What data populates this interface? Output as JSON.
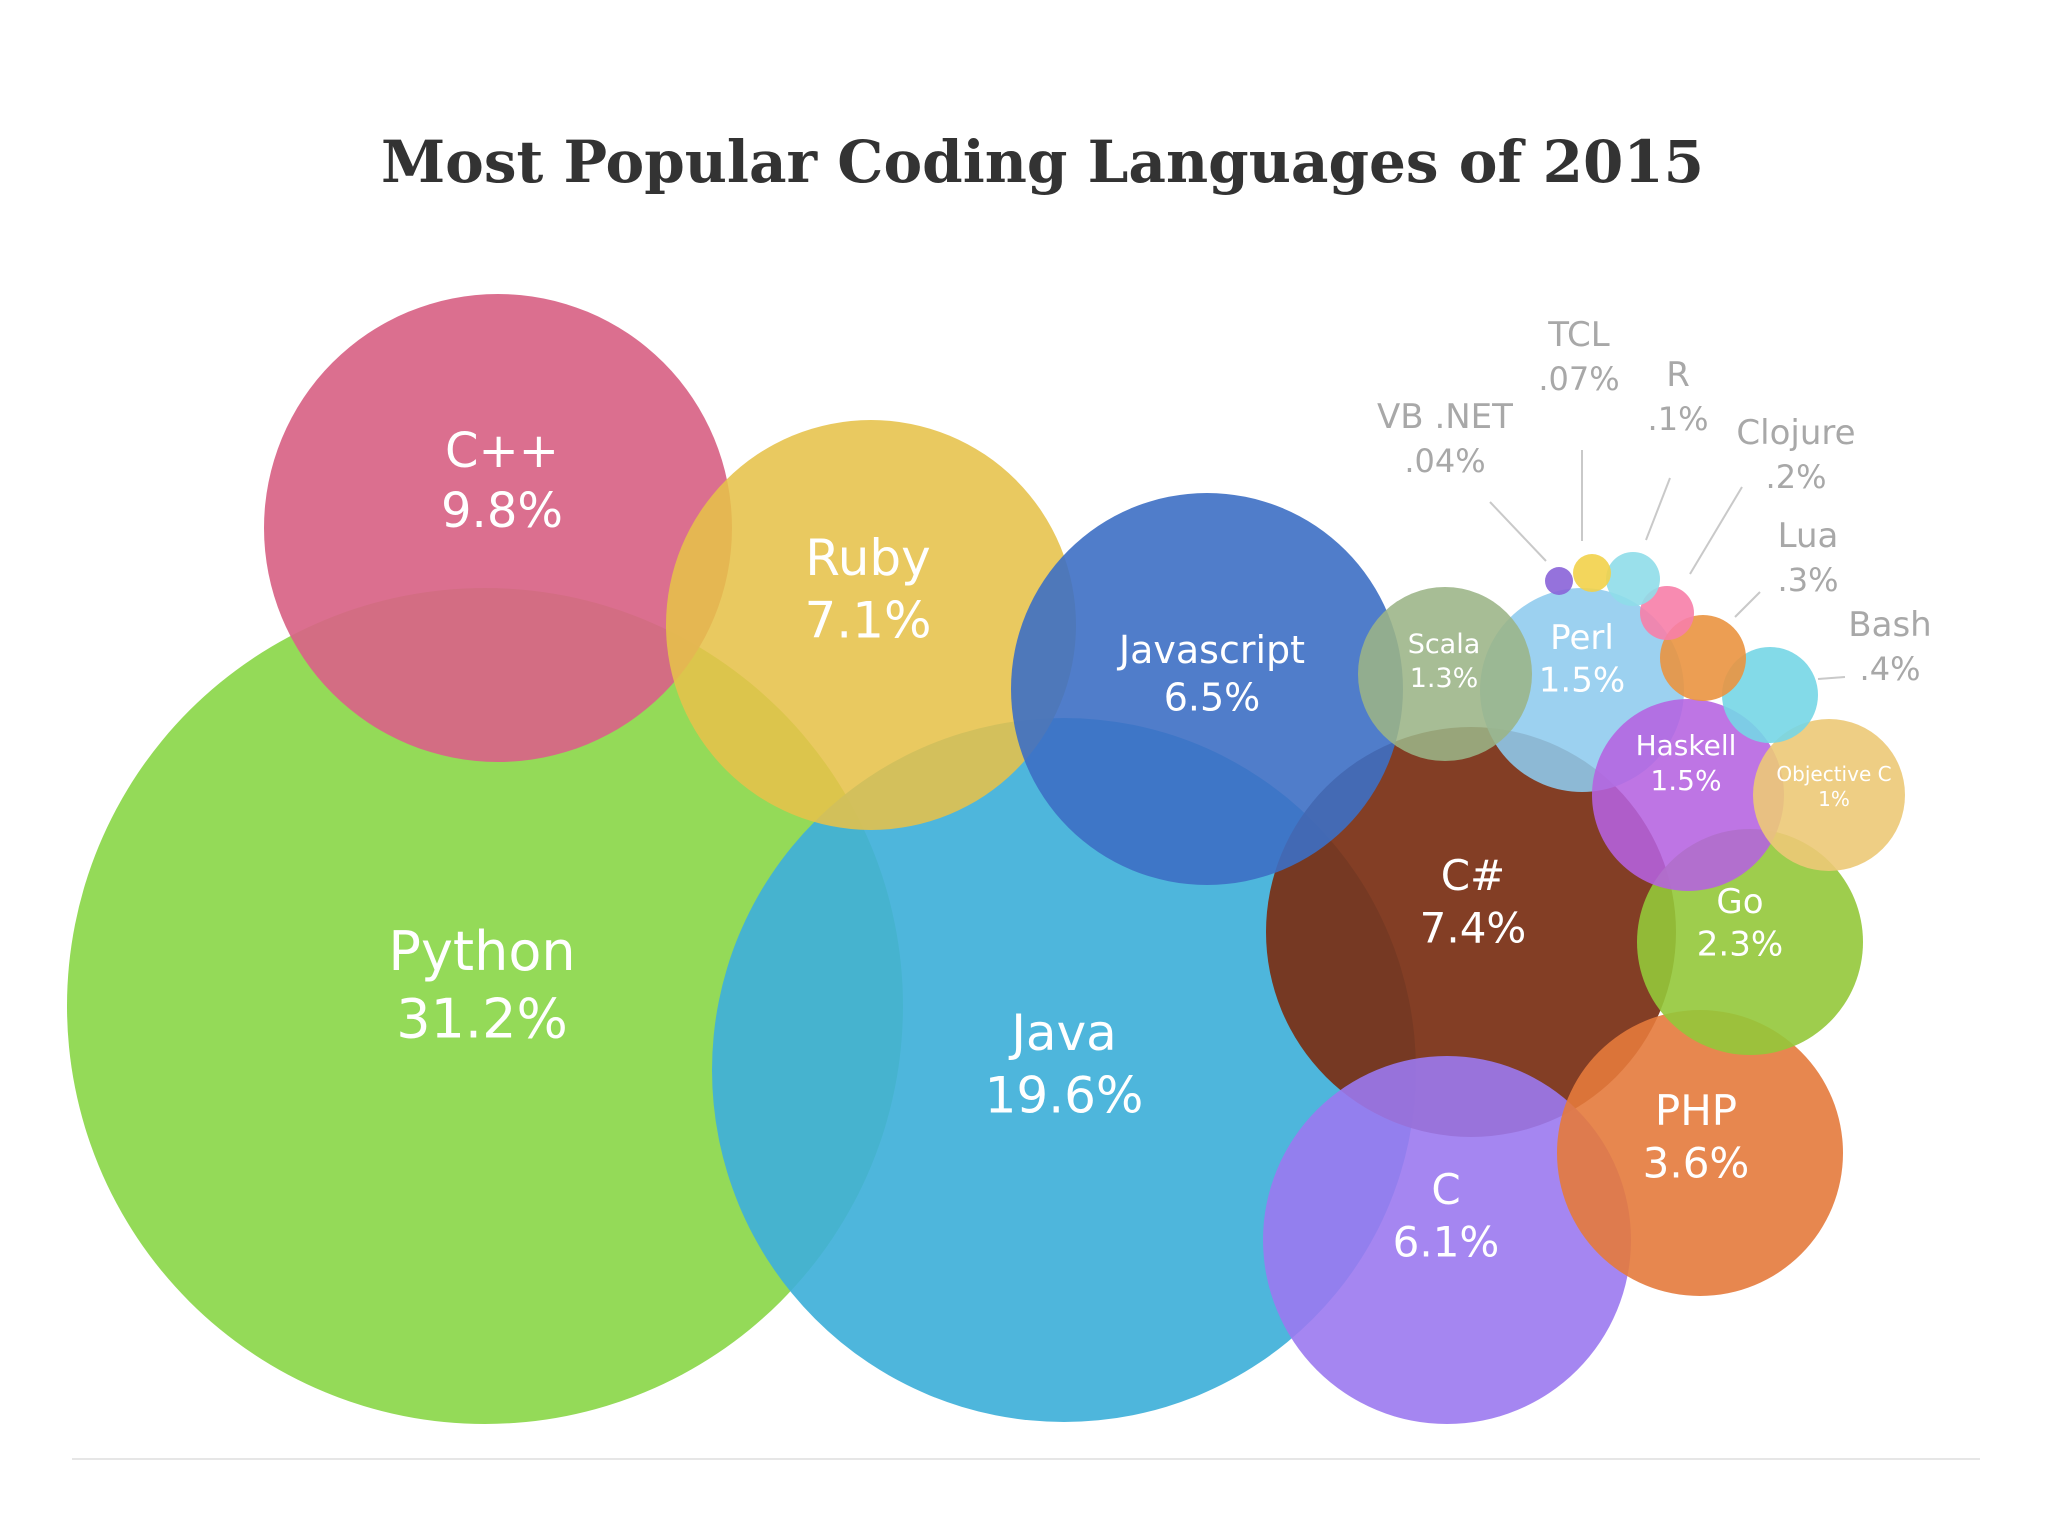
{
  "title": "Most Popular Coding Languages of 2015",
  "chart_data": {
    "type": "bubble",
    "title": "Most Popular Coding Languages of 2015",
    "unit": "%",
    "series": [
      {
        "name": "Python",
        "value_label": "31.2%",
        "value": 31.2,
        "color": "#8bd74a"
      },
      {
        "name": "Java",
        "value_label": "19.6%",
        "value": 19.6,
        "color": "#3fb0d9"
      },
      {
        "name": "C++",
        "value_label": "9.8%",
        "value": 9.8,
        "color": "#d86487"
      },
      {
        "name": "C#",
        "value_label": "7.4%",
        "value": 7.4,
        "color": "#7a2f14"
      },
      {
        "name": "Ruby",
        "value_label": "7.1%",
        "value": 7.1,
        "color": "#e6c24a"
      },
      {
        "name": "Javascript",
        "value_label": "6.5%",
        "value": 6.5,
        "color": "#3d6fc4"
      },
      {
        "name": "C",
        "value_label": "6.1%",
        "value": 6.1,
        "color": "#9b79ef"
      },
      {
        "name": "PHP",
        "value_label": "3.6%",
        "value": 3.6,
        "color": "#e47a3c"
      },
      {
        "name": "Go",
        "value_label": "2.3%",
        "value": 2.3,
        "color": "#93c83a"
      },
      {
        "name": "Perl",
        "value_label": "1.5%",
        "value": 1.5,
        "color": "#8ecbee"
      },
      {
        "name": "Haskell",
        "value_label": "1.5%",
        "value": 1.5,
        "color": "#b562e0"
      },
      {
        "name": "Scala",
        "value_label": "1.3%",
        "value": 1.3,
        "color": "#9bb486"
      },
      {
        "name": "Objective C",
        "value_label": "1%",
        "value": 1.0,
        "color": "#ecc977"
      },
      {
        "name": "Bash",
        "value_label": ".4%",
        "value": 0.4,
        "color": "#75d6e6"
      },
      {
        "name": "Lua",
        "value_label": ".3%",
        "value": 0.3,
        "color": "#ea9440"
      },
      {
        "name": "Clojure",
        "value_label": ".2%",
        "value": 0.2,
        "color": "#f77ea8"
      },
      {
        "name": "R",
        "value_label": ".1%",
        "value": 0.1,
        "color": "#8fdde9"
      },
      {
        "name": "TCL",
        "value_label": ".07%",
        "value": 0.07,
        "color": "#f2d24a"
      },
      {
        "name": "VB .NET",
        "value_label": ".04%",
        "value": 0.04,
        "color": "#8a63d8"
      }
    ]
  }
}
